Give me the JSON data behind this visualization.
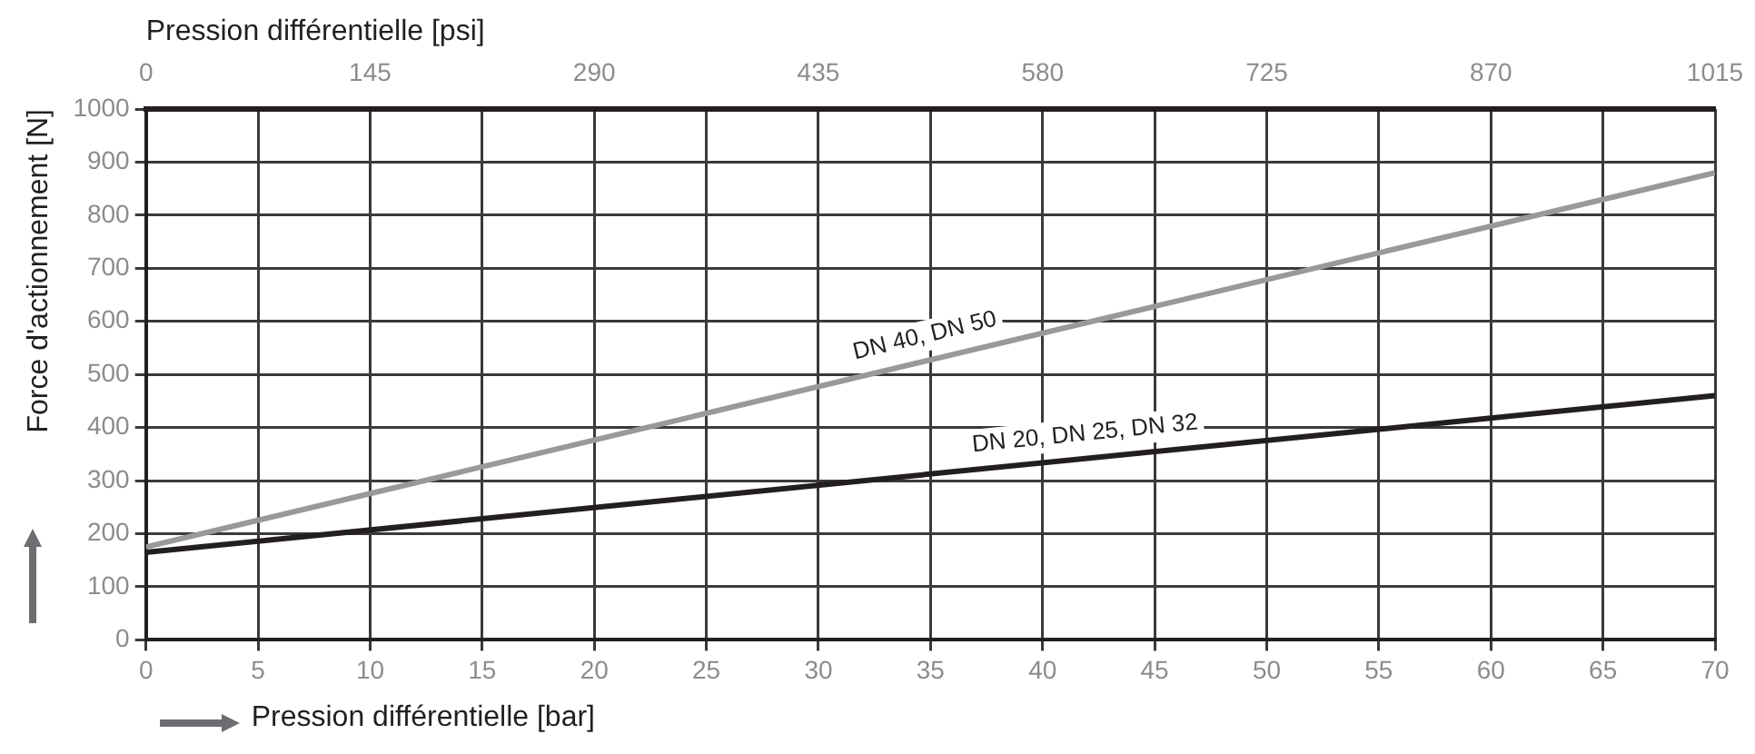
{
  "chart_data": {
    "type": "line",
    "xlabel": "Pression différentielle [bar]",
    "ylabel": "Force d'actionnement [N]",
    "x2label": "Pression différentielle [psi]",
    "x": [
      0,
      70
    ],
    "series": [
      {
        "name": "DN 40, DN 50",
        "color": "#999999",
        "values": [
          175,
          880
        ]
      },
      {
        "name": "DN 20, DN 25, DN 32",
        "color": "#231f20",
        "values": [
          165,
          460
        ]
      }
    ],
    "xlim": [
      0,
      70
    ],
    "xticks": [
      0,
      5,
      10,
      15,
      20,
      25,
      30,
      35,
      40,
      45,
      50,
      55,
      60,
      65,
      70
    ],
    "ylim": [
      0,
      1000
    ],
    "yticks": [
      0,
      100,
      200,
      300,
      400,
      500,
      600,
      700,
      800,
      900,
      1000
    ],
    "x2lim": [
      0,
      1015
    ],
    "x2ticks": [
      0,
      145,
      290,
      435,
      580,
      725,
      870,
      1015
    ],
    "grid": true,
    "legend": false,
    "marker": "none",
    "line_style": "solid"
  }
}
